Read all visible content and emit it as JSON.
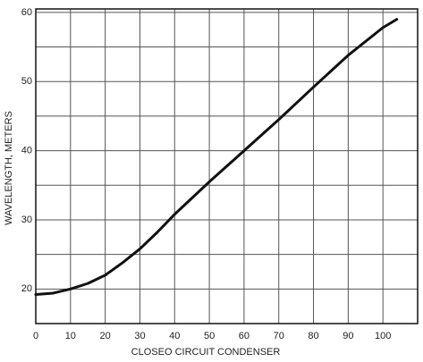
{
  "chart_data": {
    "type": "line",
    "x_label": "CLOSEO CIRCUIT CONDENSER",
    "y_label": "WAVELENGTH, METERS",
    "series": [
      {
        "name": "wavelength",
        "color": "#111111",
        "x": [
          0,
          5,
          10,
          15,
          20,
          25,
          30,
          35,
          40,
          50,
          60,
          70,
          80,
          90,
          100,
          104
        ],
        "values": [
          19.2,
          19.4,
          20,
          20.8,
          22,
          23.8,
          25.8,
          28.2,
          30.8,
          35.5,
          40,
          44.5,
          49.2,
          53.8,
          57.8,
          59
        ]
      }
    ],
    "xlim": [
      0,
      110
    ],
    "xticks": [
      0,
      10,
      20,
      30,
      40,
      50,
      60,
      70,
      80,
      90,
      100
    ],
    "ylim": [
      15,
      60.5
    ],
    "yticks": [
      20,
      30,
      40,
      50,
      60
    ],
    "minor_yticks": [
      15,
      25,
      35,
      45,
      55
    ],
    "grid": true
  }
}
